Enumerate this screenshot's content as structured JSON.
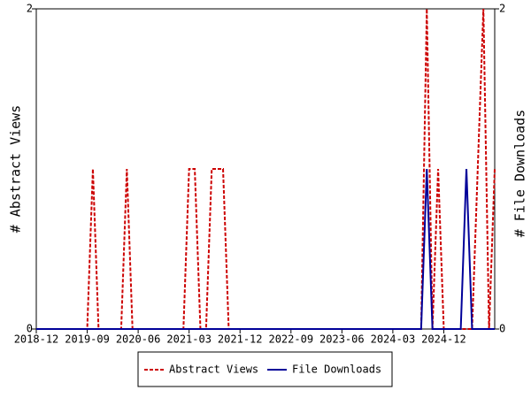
{
  "chart_data": {
    "type": "line",
    "y_label": "# Abstract Views",
    "y2_label": "# File Downloads",
    "x": [
      "2018-12",
      "2019-01",
      "2019-02",
      "2019-03",
      "2019-04",
      "2019-05",
      "2019-06",
      "2019-07",
      "2019-08",
      "2019-09",
      "2019-10",
      "2019-11",
      "2019-12",
      "2020-01",
      "2020-02",
      "2020-03",
      "2020-04",
      "2020-05",
      "2020-06",
      "2020-07",
      "2020-08",
      "2020-09",
      "2020-10",
      "2020-11",
      "2020-12",
      "2021-01",
      "2021-02",
      "2021-03",
      "2021-04",
      "2021-05",
      "2021-06",
      "2021-07",
      "2021-08",
      "2021-09",
      "2021-10",
      "2021-11",
      "2021-12",
      "2022-01",
      "2022-02",
      "2022-03",
      "2022-04",
      "2022-05",
      "2022-06",
      "2022-07",
      "2022-08",
      "2022-09",
      "2022-10",
      "2022-11",
      "2022-12",
      "2023-01",
      "2023-02",
      "2023-03",
      "2023-04",
      "2023-05",
      "2023-06",
      "2023-07",
      "2023-08",
      "2023-09",
      "2023-10",
      "2023-11",
      "2023-12",
      "2024-01",
      "2024-02",
      "2024-03",
      "2024-04",
      "2024-05",
      "2024-06",
      "2024-07",
      "2024-08",
      "2024-09",
      "2024-10",
      "2024-11",
      "2024-12",
      "2025-01",
      "2025-02",
      "2025-03",
      "2025-04",
      "2025-05",
      "2025-06",
      "2025-07",
      "2025-08",
      "2025-09"
    ],
    "xlim": [
      "2018-12",
      "2025-09"
    ],
    "xticks": [
      "2018-12",
      "2019-09",
      "2020-06",
      "2021-03",
      "2021-12",
      "2022-09",
      "2023-06",
      "2024-03",
      "2024-12"
    ],
    "ylim": [
      0,
      2
    ],
    "yticks": [
      0,
      2
    ],
    "y2lim": [
      0,
      2
    ],
    "y2ticks": [
      0,
      2
    ],
    "series": [
      {
        "name": "Abstract Views",
        "color": "#cc0000",
        "dashed": true,
        "axis": "y",
        "values": [
          0,
          0,
          0,
          0,
          0,
          0,
          0,
          0,
          0,
          0,
          1,
          0,
          0,
          0,
          0,
          0,
          1,
          0,
          0,
          0,
          0,
          0,
          0,
          0,
          0,
          0,
          0,
          1,
          1,
          0,
          0,
          1,
          1,
          1,
          0,
          0,
          0,
          0,
          0,
          0,
          0,
          0,
          0,
          0,
          0,
          0,
          0,
          0,
          0,
          0,
          0,
          0,
          0,
          0,
          0,
          0,
          0,
          0,
          0,
          0,
          0,
          0,
          0,
          0,
          0,
          0,
          0,
          0,
          0,
          2,
          0,
          1,
          0,
          0,
          0,
          0,
          0,
          0,
          1,
          2,
          0,
          1
        ]
      },
      {
        "name": "File Downloads",
        "color": "#000099",
        "dashed": false,
        "axis": "y2",
        "values": [
          0,
          0,
          0,
          0,
          0,
          0,
          0,
          0,
          0,
          0,
          0,
          0,
          0,
          0,
          0,
          0,
          0,
          0,
          0,
          0,
          0,
          0,
          0,
          0,
          0,
          0,
          0,
          0,
          0,
          0,
          0,
          0,
          0,
          0,
          0,
          0,
          0,
          0,
          0,
          0,
          0,
          0,
          0,
          0,
          0,
          0,
          0,
          0,
          0,
          0,
          0,
          0,
          0,
          0,
          0,
          0,
          0,
          0,
          0,
          0,
          0,
          0,
          0,
          0,
          0,
          0,
          0,
          0,
          0,
          1,
          0,
          0,
          0,
          0,
          0,
          0,
          1,
          0,
          0,
          0,
          0,
          0
        ]
      }
    ]
  }
}
